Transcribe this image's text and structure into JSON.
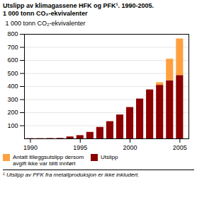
{
  "chart_data": {
    "type": "bar",
    "stacked": true,
    "title": "Utslipp av klimagassene HFK og PFK¹. 1990-2005.",
    "subtitle": "1 000 tonn CO₂-ekvivalenter",
    "ylabel": "1 000 tonn CO₂-ekvivalenter",
    "caption": "¹ Utslipp av PFK fra metallproduksjon er ikke inkludert.",
    "x": [
      1990,
      1991,
      1992,
      1993,
      1994,
      1995,
      1996,
      1997,
      1998,
      1999,
      2000,
      2001,
      2002,
      2003,
      2004,
      2005
    ],
    "series": [
      {
        "name": "Utslipp",
        "color": "#8B0000",
        "values": [
          2,
          2,
          3,
          4,
          15,
          25,
          50,
          88,
          132,
          183,
          240,
          305,
          375,
          410,
          445,
          485
        ]
      },
      {
        "name": "Antatt tilleggsutslipp dersom\navgift ikke var blitt innført",
        "color": "#FFA040",
        "values": [
          0,
          0,
          0,
          0,
          0,
          0,
          0,
          0,
          0,
          0,
          0,
          0,
          0,
          20,
          165,
          280
        ]
      }
    ],
    "xlim": [
      1989.4,
      2005.9
    ],
    "xticks": [
      1990,
      1995,
      2000,
      2005
    ],
    "ylim": [
      0,
      800
    ],
    "yticks": [
      100,
      200,
      300,
      400,
      500,
      600,
      700,
      800
    ],
    "grid": true,
    "legend": "bottom"
  }
}
